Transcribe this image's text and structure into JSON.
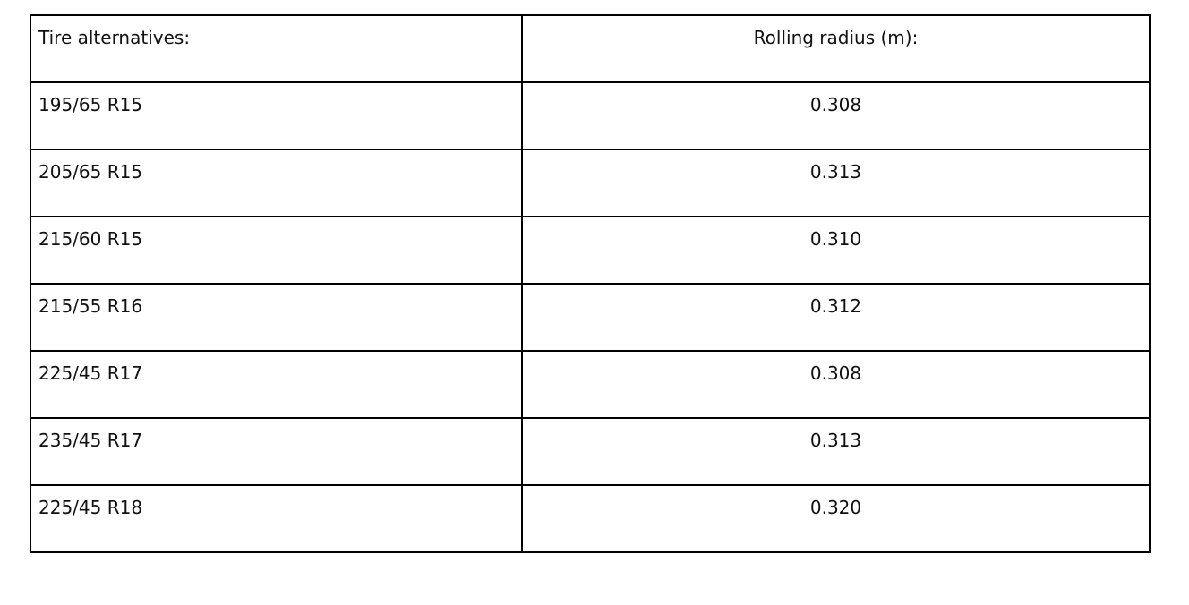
{
  "table": {
    "headers": [
      "Tire alternatives:",
      "Rolling radius (m):"
    ],
    "rows": [
      [
        "195/65 R15",
        "0.308"
      ],
      [
        "205/65 R15",
        "0.313"
      ],
      [
        "215/60 R15",
        "0.310"
      ],
      [
        "215/55 R16",
        "0.312"
      ],
      [
        "225/45 R17",
        "0.308"
      ],
      [
        "235/45 R17",
        "0.313"
      ],
      [
        "225/45 R18",
        "0.320"
      ]
    ]
  }
}
